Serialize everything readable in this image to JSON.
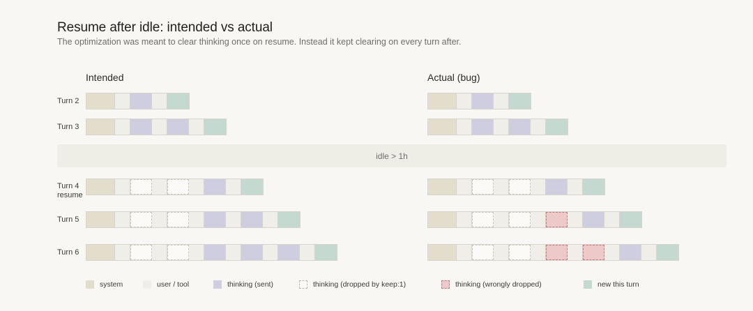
{
  "title": "Resume after idle: intended vs actual",
  "subtitle": "The optimization was meant to clear thinking once on resume. Instead it kept clearing on every turn after.",
  "columns": {
    "intended": "Intended",
    "actual": "Actual (bug)"
  },
  "idle_label": "idle > 1h",
  "rows": [
    {
      "label": "Turn 2",
      "intended": [
        "system",
        "user",
        "sent",
        "user",
        "new"
      ],
      "actual": [
        "system",
        "user",
        "sent",
        "user",
        "new"
      ]
    },
    {
      "label": "Turn 3",
      "intended": [
        "system",
        "user",
        "sent",
        "user",
        "sent",
        "user",
        "new"
      ],
      "actual": [
        "system",
        "user",
        "sent",
        "user",
        "sent",
        "user",
        "new"
      ]
    },
    {
      "label": "Turn 4\nresume",
      "intended": [
        "system",
        "user",
        "dropped",
        "user",
        "dropped",
        "user",
        "sent",
        "user",
        "new"
      ],
      "actual": [
        "system",
        "user",
        "dropped",
        "user",
        "dropped",
        "user",
        "sent",
        "user",
        "new"
      ]
    },
    {
      "label": "Turn 5",
      "intended": [
        "system",
        "user",
        "dropped",
        "user",
        "dropped",
        "user",
        "sent",
        "user",
        "sent",
        "user",
        "new"
      ],
      "actual": [
        "system",
        "user",
        "dropped",
        "user",
        "dropped",
        "user",
        "wrong",
        "user",
        "sent",
        "user",
        "new"
      ]
    },
    {
      "label": "Turn 6",
      "intended": [
        "system",
        "user",
        "dropped",
        "user",
        "dropped",
        "user",
        "sent",
        "user",
        "sent",
        "user",
        "sent",
        "user",
        "new"
      ],
      "actual": [
        "system",
        "user",
        "dropped",
        "user",
        "dropped",
        "user",
        "wrong",
        "user",
        "wrong",
        "user",
        "sent",
        "user",
        "new"
      ]
    }
  ],
  "legend": [
    {
      "key": "system",
      "label": "system"
    },
    {
      "key": "user",
      "label": "user / tool"
    },
    {
      "key": "sent",
      "label": "thinking (sent)"
    },
    {
      "key": "dropped",
      "label": "thinking (dropped by keep:1)"
    },
    {
      "key": "wrong",
      "label": "thinking (wrongly dropped)"
    },
    {
      "key": "new",
      "label": "new this turn"
    }
  ],
  "colors": {
    "system": "#e3ddcb",
    "user": "#efeee9",
    "sent": "#cfcde0",
    "dropped": "#fbfaf6",
    "wrong": "#edc9c9",
    "new": "#c4d9d0",
    "background": "#f8f7f3"
  }
}
